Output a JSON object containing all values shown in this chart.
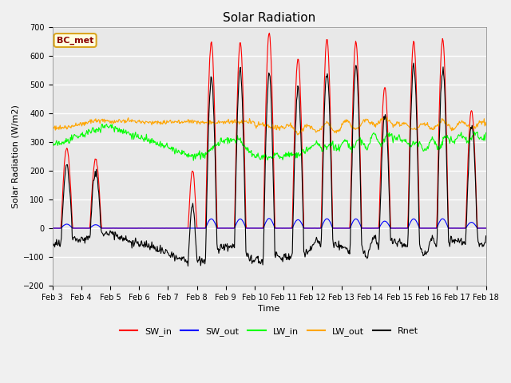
{
  "title": "Solar Radiation",
  "xlabel": "Time",
  "ylabel": "Solar Radiation (W/m2)",
  "ylim": [
    -200,
    700
  ],
  "yticks": [
    -200,
    -100,
    0,
    100,
    200,
    300,
    400,
    500,
    600,
    700
  ],
  "date_start": 3,
  "date_end": 18,
  "n_days": 15,
  "annotation_text": "BC_met",
  "legend_entries": [
    "SW_in",
    "SW_out",
    "LW_in",
    "LW_out",
    "Rnet"
  ],
  "line_colors": [
    "red",
    "blue",
    "lime",
    "orange",
    "black"
  ],
  "background_color": "#f0f0f0",
  "plot_bg_color": "#e8e8e8",
  "grid_color": "white",
  "figsize": [
    6.4,
    4.8
  ],
  "dpi": 100
}
